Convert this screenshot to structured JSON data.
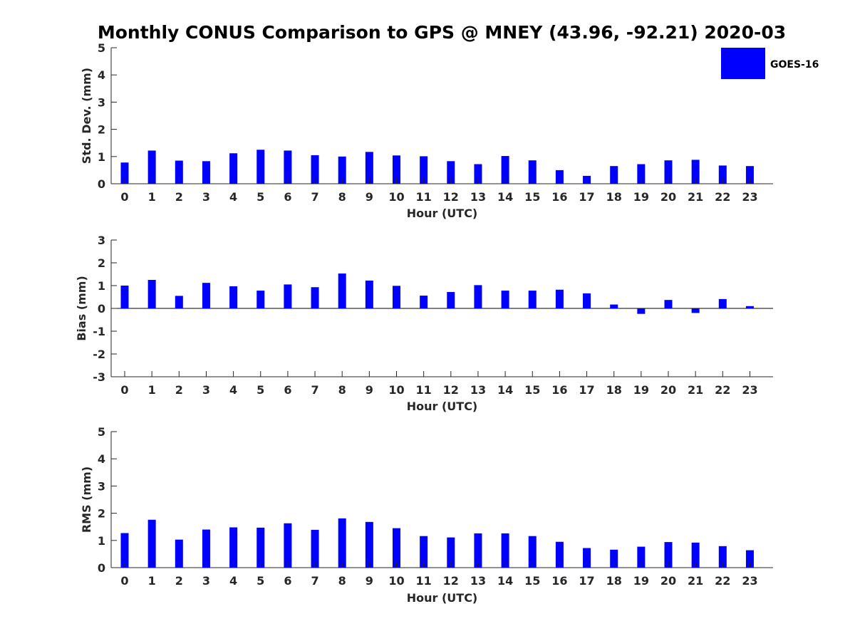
{
  "figure": {
    "title": "Monthly CONUS Comparison to GPS @ MNEY (43.96, -92.21) 2020-03",
    "legend": {
      "label": "GOES-16",
      "color": "#0000ff",
      "placement": "top-right"
    }
  },
  "chart_data": [
    {
      "type": "bar",
      "title": "Monthly CONUS Comparison to GPS @ MNEY (43.96, -92.21) 2020-03",
      "xlabel": "Hour (UTC)",
      "ylabel": "Std. Dev. (mm)",
      "ylim": [
        0,
        5
      ],
      "yticks": [
        "0",
        "1",
        "2",
        "3",
        "4",
        "5"
      ],
      "categories": [
        "0",
        "1",
        "2",
        "3",
        "4",
        "5",
        "6",
        "7",
        "8",
        "9",
        "10",
        "11",
        "12",
        "13",
        "14",
        "15",
        "16",
        "17",
        "18",
        "19",
        "20",
        "21",
        "22",
        "23"
      ],
      "series": [
        {
          "name": "GOES-16",
          "color": "#0000ff",
          "values": [
            0.78,
            1.22,
            0.85,
            0.83,
            1.12,
            1.25,
            1.22,
            1.05,
            1.0,
            1.17,
            1.04,
            1.01,
            0.83,
            0.72,
            1.02,
            0.86,
            0.5,
            0.29,
            0.65,
            0.72,
            0.86,
            0.88,
            0.67,
            0.65
          ]
        }
      ]
    },
    {
      "type": "bar",
      "xlabel": "Hour (UTC)",
      "ylabel": "Bias (mm)",
      "ylim": [
        -3,
        3
      ],
      "yticks": [
        "-3",
        "-2",
        "-1",
        "0",
        "1",
        "2",
        "3"
      ],
      "categories": [
        "0",
        "1",
        "2",
        "3",
        "4",
        "5",
        "6",
        "7",
        "8",
        "9",
        "10",
        "11",
        "12",
        "13",
        "14",
        "15",
        "16",
        "17",
        "18",
        "19",
        "20",
        "21",
        "22",
        "23"
      ],
      "series": [
        {
          "name": "GOES-16",
          "color": "#0000ff",
          "values": [
            1.0,
            1.25,
            0.55,
            1.12,
            0.97,
            0.78,
            1.05,
            0.93,
            1.53,
            1.22,
            0.99,
            0.56,
            0.72,
            1.02,
            0.78,
            0.78,
            0.82,
            0.66,
            0.17,
            -0.24,
            0.37,
            -0.2,
            0.41,
            0.1
          ]
        }
      ]
    },
    {
      "type": "bar",
      "xlabel": "Hour (UTC)",
      "ylabel": "RMS (mm)",
      "ylim": [
        0,
        5
      ],
      "yticks": [
        "0",
        "1",
        "2",
        "3",
        "4",
        "5"
      ],
      "categories": [
        "0",
        "1",
        "2",
        "3",
        "4",
        "5",
        "6",
        "7",
        "8",
        "9",
        "10",
        "11",
        "12",
        "13",
        "14",
        "15",
        "16",
        "17",
        "18",
        "19",
        "20",
        "21",
        "22",
        "23"
      ],
      "series": [
        {
          "name": "GOES-16",
          "color": "#0000ff",
          "values": [
            1.27,
            1.76,
            1.03,
            1.4,
            1.48,
            1.47,
            1.63,
            1.39,
            1.81,
            1.68,
            1.45,
            1.16,
            1.11,
            1.26,
            1.26,
            1.16,
            0.95,
            0.72,
            0.66,
            0.77,
            0.94,
            0.92,
            0.79,
            0.64
          ]
        }
      ]
    }
  ]
}
